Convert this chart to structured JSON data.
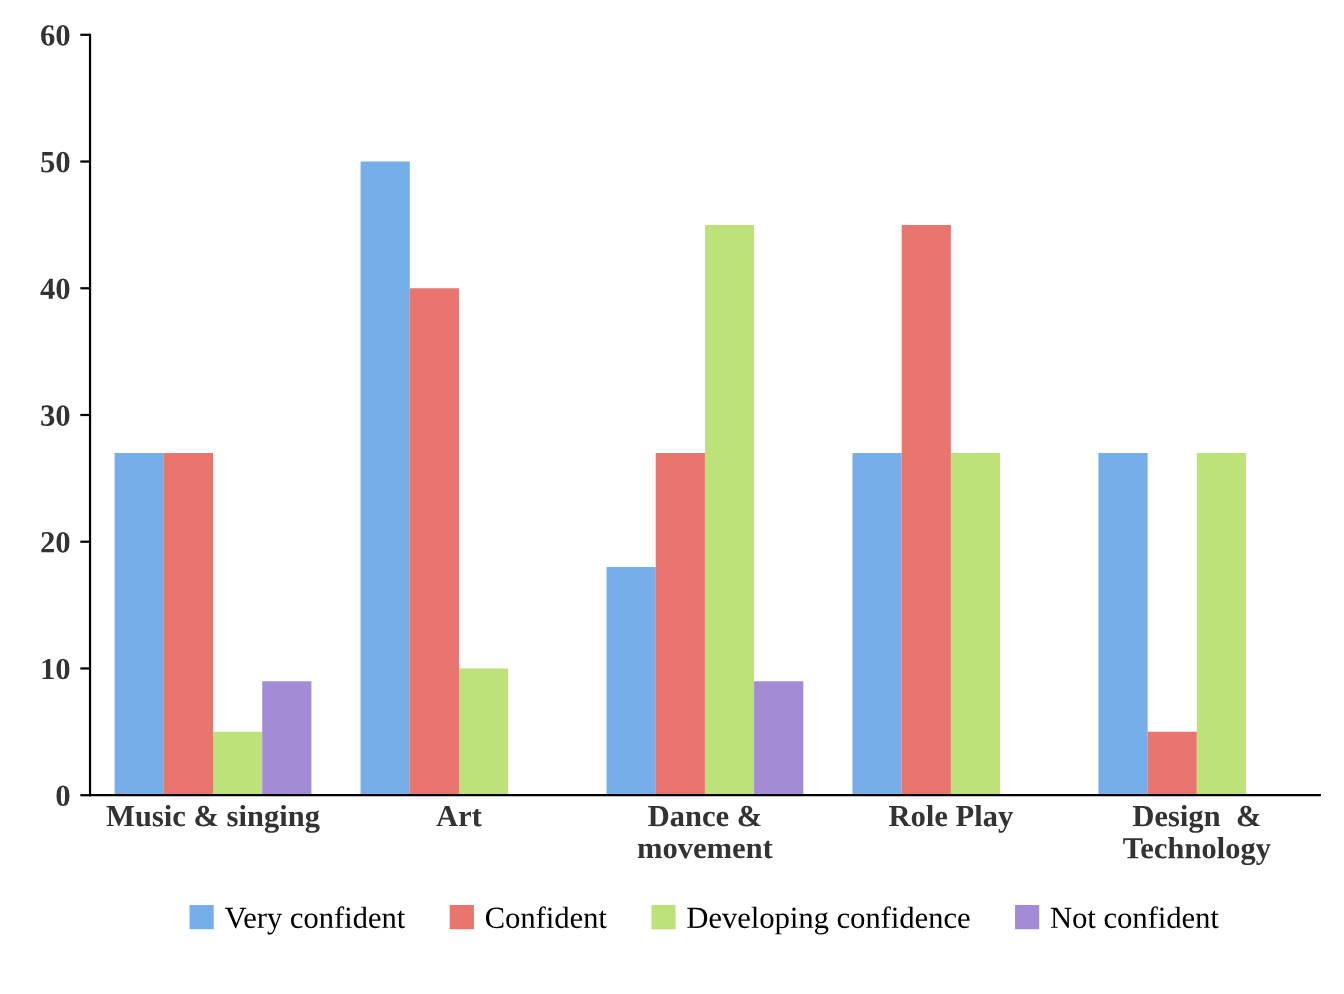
{
  "chart_data": {
    "type": "bar",
    "categories": [
      "Music & singing",
      "Art",
      "Dance &\nmovement",
      "Role Play",
      "Design  &\nTechnology"
    ],
    "series": [
      {
        "name": "Very confident",
        "color": "#75aee8",
        "values": [
          27,
          50,
          18,
          27,
          27
        ]
      },
      {
        "name": "Confident",
        "color": "#e8756e",
        "values": [
          27,
          40,
          27,
          45,
          5
        ]
      },
      {
        "name": "Developing confidence",
        "color": "#bde27a",
        "values": [
          5,
          10,
          45,
          27,
          27
        ]
      },
      {
        "name": "Not confident",
        "color": "#a48bd6",
        "values": [
          9,
          0,
          9,
          0,
          0
        ]
      }
    ],
    "ylim": [
      0,
      60
    ],
    "yticks": [
      0,
      10,
      20,
      30,
      40,
      50,
      60
    ],
    "grid": false,
    "legend": "bottom"
  }
}
